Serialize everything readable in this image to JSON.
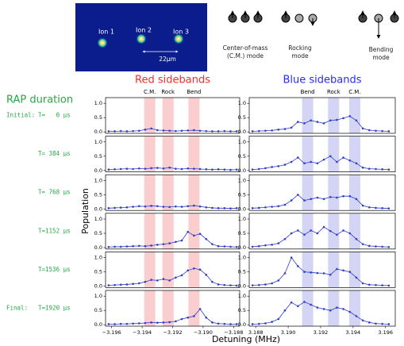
{
  "image": {
    "ions": [
      "Ion 1",
      "Ion 2",
      "Ion 3"
    ],
    "scale": "22µm"
  },
  "modes": [
    {
      "label": [
        "Center-of-mass",
        "(C.M.) mode"
      ]
    },
    {
      "label": [
        "Rocking",
        "mode"
      ]
    },
    {
      "label": [
        "Bending",
        "mode"
      ]
    }
  ],
  "rap_label": "RAP duration",
  "rows": [
    {
      "prefix": "Initial:",
      "label": "T=   0 µs"
    },
    {
      "label": "T= 384 µs"
    },
    {
      "label": "T= 768 µs"
    },
    {
      "label": "T=1152 µs"
    },
    {
      "label": "T=1536 µs"
    },
    {
      "prefix": "Final:",
      "label": "T=1920 µs"
    }
  ],
  "columns": [
    {
      "title": "Red sidebands",
      "color": "#ff2a2a",
      "band_color": "#f9c6c6",
      "bands": [
        {
          "label": "C.M.",
          "x": -3.1935
        },
        {
          "label": "Rock",
          "x": -3.1923
        },
        {
          "label": "Bend",
          "x": -3.1906
        }
      ]
    },
    {
      "title": "Blue sidebands",
      "color": "#2a2aff",
      "band_color": "#cdcdf2",
      "bands": [
        {
          "label": "Bend",
          "x": 3.1912
        },
        {
          "label": "Rock",
          "x": 3.1928
        },
        {
          "label": "C.M.",
          "x": 3.1941
        }
      ]
    }
  ],
  "y_label": "Population",
  "x_label": "Detuning (MHz)",
  "chart_data": [
    {
      "type": "line",
      "color": "#2f3fc8",
      "xlim": [
        -3.1964,
        -3.1876
      ],
      "ylim": [
        -0.05,
        1.2
      ],
      "yticks": [
        {
          "value": 0,
          "label": "0.0"
        },
        {
          "value": 0.5,
          "label": "0.5"
        },
        {
          "value": 1,
          "label": "1.0"
        }
      ],
      "x": [
        -3.1962,
        -3.1958,
        -3.1954,
        -3.195,
        -3.1946,
        -3.1942,
        -3.1938,
        -3.1934,
        -3.193,
        -3.1926,
        -3.1922,
        -3.1918,
        -3.1914,
        -3.191,
        -3.1906,
        -3.1902,
        -3.1898,
        -3.1894,
        -3.189,
        -3.1886,
        -3.1882,
        -3.1878
      ],
      "values": [
        0.02,
        0.02,
        0.03,
        0.02,
        0.03,
        0.04,
        0.08,
        0.12,
        0.06,
        0.05,
        0.04,
        0.03,
        0.04,
        0.05,
        0.06,
        0.04,
        0.03,
        0.02,
        0.02,
        0.03,
        0.02,
        0.02
      ]
    },
    {
      "type": "line",
      "color": "#2f3fc8",
      "xlim": [
        3.1876,
        3.1966
      ],
      "ylim": [
        -0.05,
        1.2
      ],
      "yticks": [
        {
          "value": 0,
          "label": "0.0"
        },
        {
          "value": 0.5,
          "label": "0.5"
        },
        {
          "value": 1,
          "label": "1.0"
        }
      ],
      "x": [
        3.1878,
        3.1882,
        3.1886,
        3.189,
        3.1894,
        3.1898,
        3.1902,
        3.1906,
        3.191,
        3.1914,
        3.1918,
        3.1922,
        3.1926,
        3.193,
        3.1934,
        3.1938,
        3.1942,
        3.1946,
        3.195,
        3.1954,
        3.1958,
        3.1962
      ],
      "values": [
        0.02,
        0.03,
        0.04,
        0.05,
        0.08,
        0.1,
        0.15,
        0.35,
        0.3,
        0.4,
        0.35,
        0.3,
        0.4,
        0.42,
        0.48,
        0.55,
        0.4,
        0.12,
        0.06,
        0.04,
        0.03,
        0.02
      ]
    },
    {
      "type": "line",
      "color": "#2f3fc8",
      "xlim": [
        -3.1964,
        -3.1876
      ],
      "ylim": [
        -0.05,
        1.2
      ],
      "yticks": [
        {
          "value": 0,
          "label": "0.0"
        },
        {
          "value": 0.5,
          "label": "0.5"
        },
        {
          "value": 1,
          "label": "1.0"
        }
      ],
      "x": [
        -3.1962,
        -3.1958,
        -3.1954,
        -3.195,
        -3.1946,
        -3.1942,
        -3.1938,
        -3.1934,
        -3.193,
        -3.1926,
        -3.1922,
        -3.1918,
        -3.1914,
        -3.191,
        -3.1906,
        -3.1902,
        -3.1898,
        -3.1894,
        -3.189,
        -3.1886,
        -3.1882,
        -3.1878
      ],
      "values": [
        0.03,
        0.04,
        0.05,
        0.06,
        0.05,
        0.07,
        0.06,
        0.08,
        0.09,
        0.07,
        0.1,
        0.06,
        0.05,
        0.07,
        0.06,
        0.05,
        0.04,
        0.03,
        0.04,
        0.03,
        0.02,
        0.03
      ]
    },
    {
      "type": "line",
      "color": "#2f3fc8",
      "xlim": [
        3.1876,
        3.1966
      ],
      "ylim": [
        -0.05,
        1.2
      ],
      "yticks": [
        {
          "value": 0,
          "label": "0.0"
        },
        {
          "value": 0.5,
          "label": "0.5"
        },
        {
          "value": 1,
          "label": "1.0"
        }
      ],
      "x": [
        3.1878,
        3.1882,
        3.1886,
        3.189,
        3.1894,
        3.1898,
        3.1902,
        3.1906,
        3.191,
        3.1914,
        3.1918,
        3.1922,
        3.1926,
        3.193,
        3.1934,
        3.1938,
        3.1942,
        3.1946,
        3.195,
        3.1954,
        3.1958,
        3.1962
      ],
      "values": [
        0.03,
        0.05,
        0.08,
        0.12,
        0.15,
        0.2,
        0.3,
        0.45,
        0.25,
        0.3,
        0.25,
        0.38,
        0.5,
        0.3,
        0.45,
        0.35,
        0.25,
        0.1,
        0.06,
        0.05,
        0.04,
        0.03
      ]
    },
    {
      "type": "line",
      "color": "#2f3fc8",
      "xlim": [
        -3.1964,
        -3.1876
      ],
      "ylim": [
        -0.05,
        1.2
      ],
      "yticks": [
        {
          "value": 0,
          "label": "0.0"
        },
        {
          "value": 0.5,
          "label": "0.5"
        },
        {
          "value": 1,
          "label": "1.0"
        }
      ],
      "x": [
        -3.1962,
        -3.1958,
        -3.1954,
        -3.195,
        -3.1946,
        -3.1942,
        -3.1938,
        -3.1934,
        -3.193,
        -3.1926,
        -3.1922,
        -3.1918,
        -3.1914,
        -3.191,
        -3.1906,
        -3.1902,
        -3.1898,
        -3.1894,
        -3.189,
        -3.1886,
        -3.1882,
        -3.1878
      ],
      "values": [
        0.03,
        0.04,
        0.05,
        0.06,
        0.08,
        0.1,
        0.09,
        0.11,
        0.1,
        0.08,
        0.07,
        0.09,
        0.08,
        0.1,
        0.12,
        0.09,
        0.06,
        0.04,
        0.03,
        0.03,
        0.02,
        0.03
      ]
    },
    {
      "type": "line",
      "color": "#2f3fc8",
      "xlim": [
        3.1876,
        3.1966
      ],
      "ylim": [
        -0.05,
        1.2
      ],
      "yticks": [
        {
          "value": 0,
          "label": "0.0"
        },
        {
          "value": 0.5,
          "label": "0.5"
        },
        {
          "value": 1,
          "label": "1.0"
        }
      ],
      "x": [
        3.1878,
        3.1882,
        3.1886,
        3.189,
        3.1894,
        3.1898,
        3.1902,
        3.1906,
        3.191,
        3.1914,
        3.1918,
        3.1922,
        3.1926,
        3.193,
        3.1934,
        3.1938,
        3.1942,
        3.1946,
        3.195,
        3.1954,
        3.1958,
        3.1962
      ],
      "values": [
        0.03,
        0.04,
        0.06,
        0.08,
        0.1,
        0.15,
        0.3,
        0.5,
        0.3,
        0.35,
        0.4,
        0.35,
        0.42,
        0.4,
        0.45,
        0.45,
        0.35,
        0.12,
        0.06,
        0.04,
        0.03,
        0.02
      ]
    },
    {
      "type": "line",
      "color": "#2f3fc8",
      "xlim": [
        -3.1964,
        -3.1876
      ],
      "ylim": [
        -0.05,
        1.2
      ],
      "yticks": [
        {
          "value": 0,
          "label": "0.0"
        },
        {
          "value": 0.5,
          "label": "0.5"
        },
        {
          "value": 1,
          "label": "1.0"
        }
      ],
      "x": [
        -3.1962,
        -3.1958,
        -3.1954,
        -3.195,
        -3.1946,
        -3.1942,
        -3.1938,
        -3.1934,
        -3.193,
        -3.1926,
        -3.1922,
        -3.1918,
        -3.1914,
        -3.191,
        -3.1906,
        -3.1902,
        -3.1898,
        -3.1894,
        -3.189,
        -3.1886,
        -3.1882,
        -3.1878
      ],
      "values": [
        0.02,
        0.03,
        0.03,
        0.04,
        0.05,
        0.06,
        0.05,
        0.07,
        0.1,
        0.12,
        0.15,
        0.2,
        0.25,
        0.55,
        0.42,
        0.48,
        0.3,
        0.12,
        0.05,
        0.04,
        0.03,
        0.02
      ]
    },
    {
      "type": "line",
      "color": "#2f3fc8",
      "xlim": [
        3.1876,
        3.1966
      ],
      "ylim": [
        -0.05,
        1.2
      ],
      "yticks": [
        {
          "value": 0,
          "label": "0.0"
        },
        {
          "value": 0.5,
          "label": "0.5"
        },
        {
          "value": 1,
          "label": "1.0"
        }
      ],
      "x": [
        3.1878,
        3.1882,
        3.1886,
        3.189,
        3.1894,
        3.1898,
        3.1902,
        3.1906,
        3.191,
        3.1914,
        3.1918,
        3.1922,
        3.1926,
        3.193,
        3.1934,
        3.1938,
        3.1942,
        3.1946,
        3.195,
        3.1954,
        3.1958,
        3.1962
      ],
      "values": [
        0.03,
        0.05,
        0.08,
        0.1,
        0.15,
        0.3,
        0.5,
        0.6,
        0.45,
        0.6,
        0.5,
        0.72,
        0.58,
        0.45,
        0.6,
        0.5,
        0.3,
        0.12,
        0.06,
        0.04,
        0.03,
        0.02
      ]
    },
    {
      "type": "line",
      "color": "#2f3fc8",
      "xlim": [
        -3.1964,
        -3.1876
      ],
      "ylim": [
        -0.05,
        1.2
      ],
      "yticks": [
        {
          "value": 0,
          "label": "0.0"
        },
        {
          "value": 0.5,
          "label": "0.5"
        },
        {
          "value": 1,
          "label": "1.0"
        }
      ],
      "x": [
        -3.1962,
        -3.1958,
        -3.1954,
        -3.195,
        -3.1946,
        -3.1942,
        -3.1938,
        -3.1934,
        -3.193,
        -3.1926,
        -3.1922,
        -3.1918,
        -3.1914,
        -3.191,
        -3.1906,
        -3.1902,
        -3.1898,
        -3.1894,
        -3.189,
        -3.1886,
        -3.1882,
        -3.1878
      ],
      "values": [
        0.03,
        0.04,
        0.05,
        0.06,
        0.08,
        0.1,
        0.15,
        0.22,
        0.2,
        0.25,
        0.2,
        0.3,
        0.38,
        0.55,
        0.62,
        0.58,
        0.4,
        0.15,
        0.06,
        0.04,
        0.03,
        0.02
      ]
    },
    {
      "type": "line",
      "color": "#2f3fc8",
      "xlim": [
        3.1876,
        3.1966
      ],
      "ylim": [
        -0.05,
        1.2
      ],
      "yticks": [
        {
          "value": 0,
          "label": "0.0"
        },
        {
          "value": 0.5,
          "label": "0.5"
        },
        {
          "value": 1,
          "label": "1.0"
        }
      ],
      "x": [
        3.1878,
        3.1882,
        3.1886,
        3.189,
        3.1894,
        3.1898,
        3.1902,
        3.1906,
        3.191,
        3.1914,
        3.1918,
        3.1922,
        3.1926,
        3.193,
        3.1934,
        3.1938,
        3.1942,
        3.1946,
        3.195,
        3.1954,
        3.1958,
        3.1962
      ],
      "values": [
        0.03,
        0.04,
        0.06,
        0.1,
        0.2,
        0.45,
        1.0,
        0.7,
        0.5,
        0.48,
        0.46,
        0.45,
        0.4,
        0.6,
        0.55,
        0.5,
        0.3,
        0.1,
        0.05,
        0.04,
        0.03,
        0.02
      ]
    },
    {
      "type": "line",
      "color": "#2f3fc8",
      "xlim": [
        -3.1964,
        -3.1876
      ],
      "ylim": [
        -0.05,
        1.2
      ],
      "yticks": [
        {
          "value": 0,
          "label": "0.0"
        },
        {
          "value": 0.5,
          "label": "0.5"
        },
        {
          "value": 1,
          "label": "1.0"
        }
      ],
      "xticks": [
        {
          "value": -3.196,
          "label": "−3.196"
        },
        {
          "value": -3.194,
          "label": "−3.194"
        },
        {
          "value": -3.192,
          "label": "−3.192"
        },
        {
          "value": -3.19,
          "label": "−3.190"
        },
        {
          "value": -3.188,
          "label": "−3.188"
        }
      ],
      "x": [
        -3.1962,
        -3.1958,
        -3.1954,
        -3.195,
        -3.1946,
        -3.1942,
        -3.1938,
        -3.1934,
        -3.193,
        -3.1926,
        -3.1922,
        -3.1918,
        -3.1914,
        -3.191,
        -3.1906,
        -3.1902,
        -3.1898,
        -3.1894,
        -3.189,
        -3.1886,
        -3.1882,
        -3.1878
      ],
      "values": [
        0.02,
        0.02,
        0.03,
        0.03,
        0.04,
        0.05,
        0.06,
        0.08,
        0.07,
        0.08,
        0.09,
        0.12,
        0.2,
        0.25,
        0.3,
        0.55,
        0.25,
        0.08,
        0.04,
        0.03,
        0.02,
        0.02
      ]
    },
    {
      "type": "line",
      "color": "#2f3fc8",
      "xlim": [
        3.1876,
        3.1966
      ],
      "ylim": [
        -0.05,
        1.2
      ],
      "yticks": [
        {
          "value": 0,
          "label": "0.0"
        },
        {
          "value": 0.5,
          "label": "0.5"
        },
        {
          "value": 1,
          "label": "1.0"
        }
      ],
      "xticks": [
        3.188,
        {
          "value": 3.19,
          "label": "3.190"
        },
        3.192,
        3.194,
        3.196
      ],
      "x": [
        3.1878,
        3.1882,
        3.1886,
        3.189,
        3.1894,
        3.1898,
        3.1902,
        3.1906,
        3.191,
        3.1914,
        3.1918,
        3.1922,
        3.1926,
        3.193,
        3.1934,
        3.1938,
        3.1942,
        3.1946,
        3.195,
        3.1954,
        3.1958,
        3.1962
      ],
      "values": [
        0.02,
        0.03,
        0.05,
        0.1,
        0.2,
        0.5,
        0.78,
        0.65,
        0.8,
        0.7,
        0.6,
        0.55,
        0.5,
        0.6,
        0.55,
        0.45,
        0.3,
        0.15,
        0.08,
        0.04,
        0.03,
        0.02
      ]
    }
  ]
}
